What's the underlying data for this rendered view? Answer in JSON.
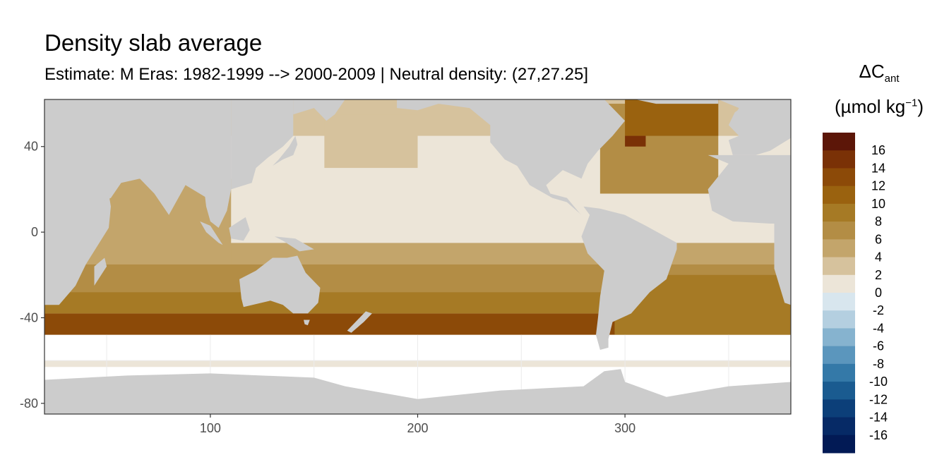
{
  "chart_data": {
    "type": "heatmap",
    "title": "Density slab average",
    "subtitle": "Estimate: M Eras: 1982-1999 --> 2000-2009 | Neutral density: (27,27.25]",
    "legend_title_symbol": "ΔC",
    "legend_title_subscript": "ant",
    "legend_unit_prefix": "(µmol kg",
    "legend_unit_superscript": "−1",
    "legend_unit_suffix": ")",
    "x_range": [
      20,
      380
    ],
    "y_range": [
      -85,
      62
    ],
    "x_ticks": [
      "100",
      "200",
      "300"
    ],
    "x_tick_values": [
      100,
      200,
      300
    ],
    "y_ticks": [
      "40",
      "0",
      "-40",
      "-80"
    ],
    "y_tick_values": [
      40,
      0,
      -40,
      -80
    ],
    "legend_labels": [
      "16",
      "14",
      "12",
      "10",
      "8",
      "6",
      "4",
      "2",
      "0",
      "-2",
      "-4",
      "-6",
      "-8",
      "-10",
      "-12",
      "-14",
      "-16"
    ],
    "legend_colors": [
      "#5c1608",
      "#7a3106",
      "#8c4a08",
      "#9a620f",
      "#a67a25",
      "#b38d45",
      "#c3a56b",
      "#d6c29d",
      "#ece5d8",
      "#d8e6ee",
      "#b4cfe0",
      "#86b3cf",
      "#5b96bd",
      "#3479a8",
      "#1a5b90",
      "#0c3f79",
      "#062a66",
      "#021a55"
    ],
    "land_color": "#cccccc",
    "nodata_band": [
      -60,
      -48
    ],
    "zonal_bands": [
      {
        "lat_min": -48,
        "lat_max": -38,
        "value": 12
      },
      {
        "lat_min": -38,
        "lat_max": -28,
        "value": 8
      },
      {
        "lat_min": -28,
        "lat_max": -15,
        "value": 6
      },
      {
        "lat_min": -15,
        "lat_max": -5,
        "value": 4
      },
      {
        "lat_min": -5,
        "lat_max": 45,
        "value": 1
      },
      {
        "lat_min": 45,
        "lat_max": 62,
        "value": 3
      }
    ],
    "regional_patches": [
      {
        "lon_min": 288,
        "lon_max": 345,
        "lat_min": 18,
        "lat_max": 60,
        "value": 6
      },
      {
        "lon_min": 300,
        "lon_max": 345,
        "lat_min": 45,
        "lat_max": 62,
        "value": 10
      },
      {
        "lon_min": 300,
        "lon_max": 310,
        "lat_min": 40,
        "lat_max": 45,
        "value": 15
      },
      {
        "lon_min": 295,
        "lon_max": 380,
        "lat_min": -48,
        "lat_max": -20,
        "value": 9
      },
      {
        "lon_min": 155,
        "lon_max": 200,
        "lat_min": 30,
        "lat_max": 55,
        "value": 3
      },
      {
        "lon_min": 20,
        "lon_max": 110,
        "lat_min": -15,
        "lat_max": 25,
        "value": 4
      }
    ]
  }
}
